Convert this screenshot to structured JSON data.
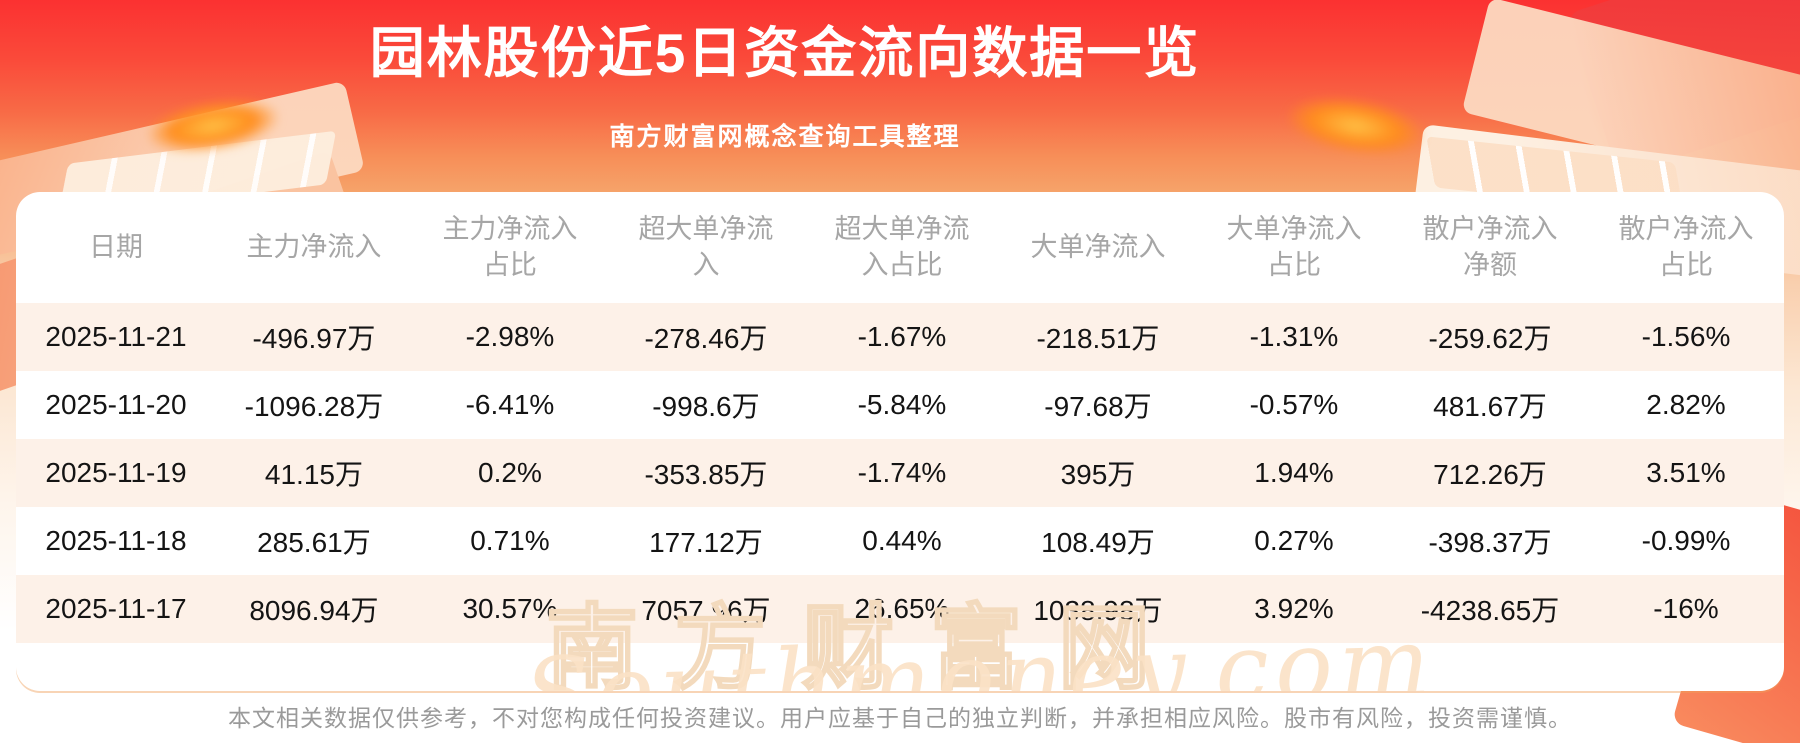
{
  "header": {
    "title": "园林股份近5日资金流向数据一览",
    "subtitle": "南方财富网概念查询工具整理"
  },
  "chart_data": {
    "type": "table",
    "title": "园林股份近5日资金流向数据一览",
    "columns": [
      "日期",
      "主力净流入",
      "主力净流入占比",
      "超大单净流入",
      "超大单净流入占比",
      "大单净流入",
      "大单净流入占比",
      "散户净流入净额",
      "散户净流入占比"
    ],
    "rows": [
      [
        "2025-11-21",
        "-496.97万",
        "-2.98%",
        "-278.46万",
        "-1.67%",
        "-218.51万",
        "-1.31%",
        "-259.62万",
        "-1.56%"
      ],
      [
        "2025-11-20",
        "-1096.28万",
        "-6.41%",
        "-998.6万",
        "-5.84%",
        "-97.68万",
        "-0.57%",
        "481.67万",
        "2.82%"
      ],
      [
        "2025-11-19",
        "41.15万",
        "0.2%",
        "-353.85万",
        "-1.74%",
        "395万",
        "1.94%",
        "712.26万",
        "3.51%"
      ],
      [
        "2025-11-18",
        "285.61万",
        "0.71%",
        "177.12万",
        "0.44%",
        "108.49万",
        "0.27%",
        "-398.37万",
        "-0.99%"
      ],
      [
        "2025-11-17",
        "8096.94万",
        "30.57%",
        "7057.96万",
        "26.65%",
        "1038.98万",
        "3.92%",
        "-4238.65万",
        "-16%"
      ]
    ]
  },
  "watermark": {
    "text_cn": "南方财富网",
    "text_en": "Southmoney.com"
  },
  "footer": {
    "disclaimer": "本文相关数据仅供参考，不对您构成任何投资建议。用户应基于自己的独立判断，并承担相应风险。股市有风险，投资需谨慎。"
  },
  "colors": {
    "background_red": "#fb3131",
    "background_orange": "#f6a86e",
    "card_background": "#ffffff",
    "row_stripe": "#fdf1e8",
    "header_text": "#a6a6a6",
    "data_text": "#141414",
    "title_text": "#ffffff",
    "watermark": "#f3dabd",
    "footer_text": "#9a9a9a"
  }
}
